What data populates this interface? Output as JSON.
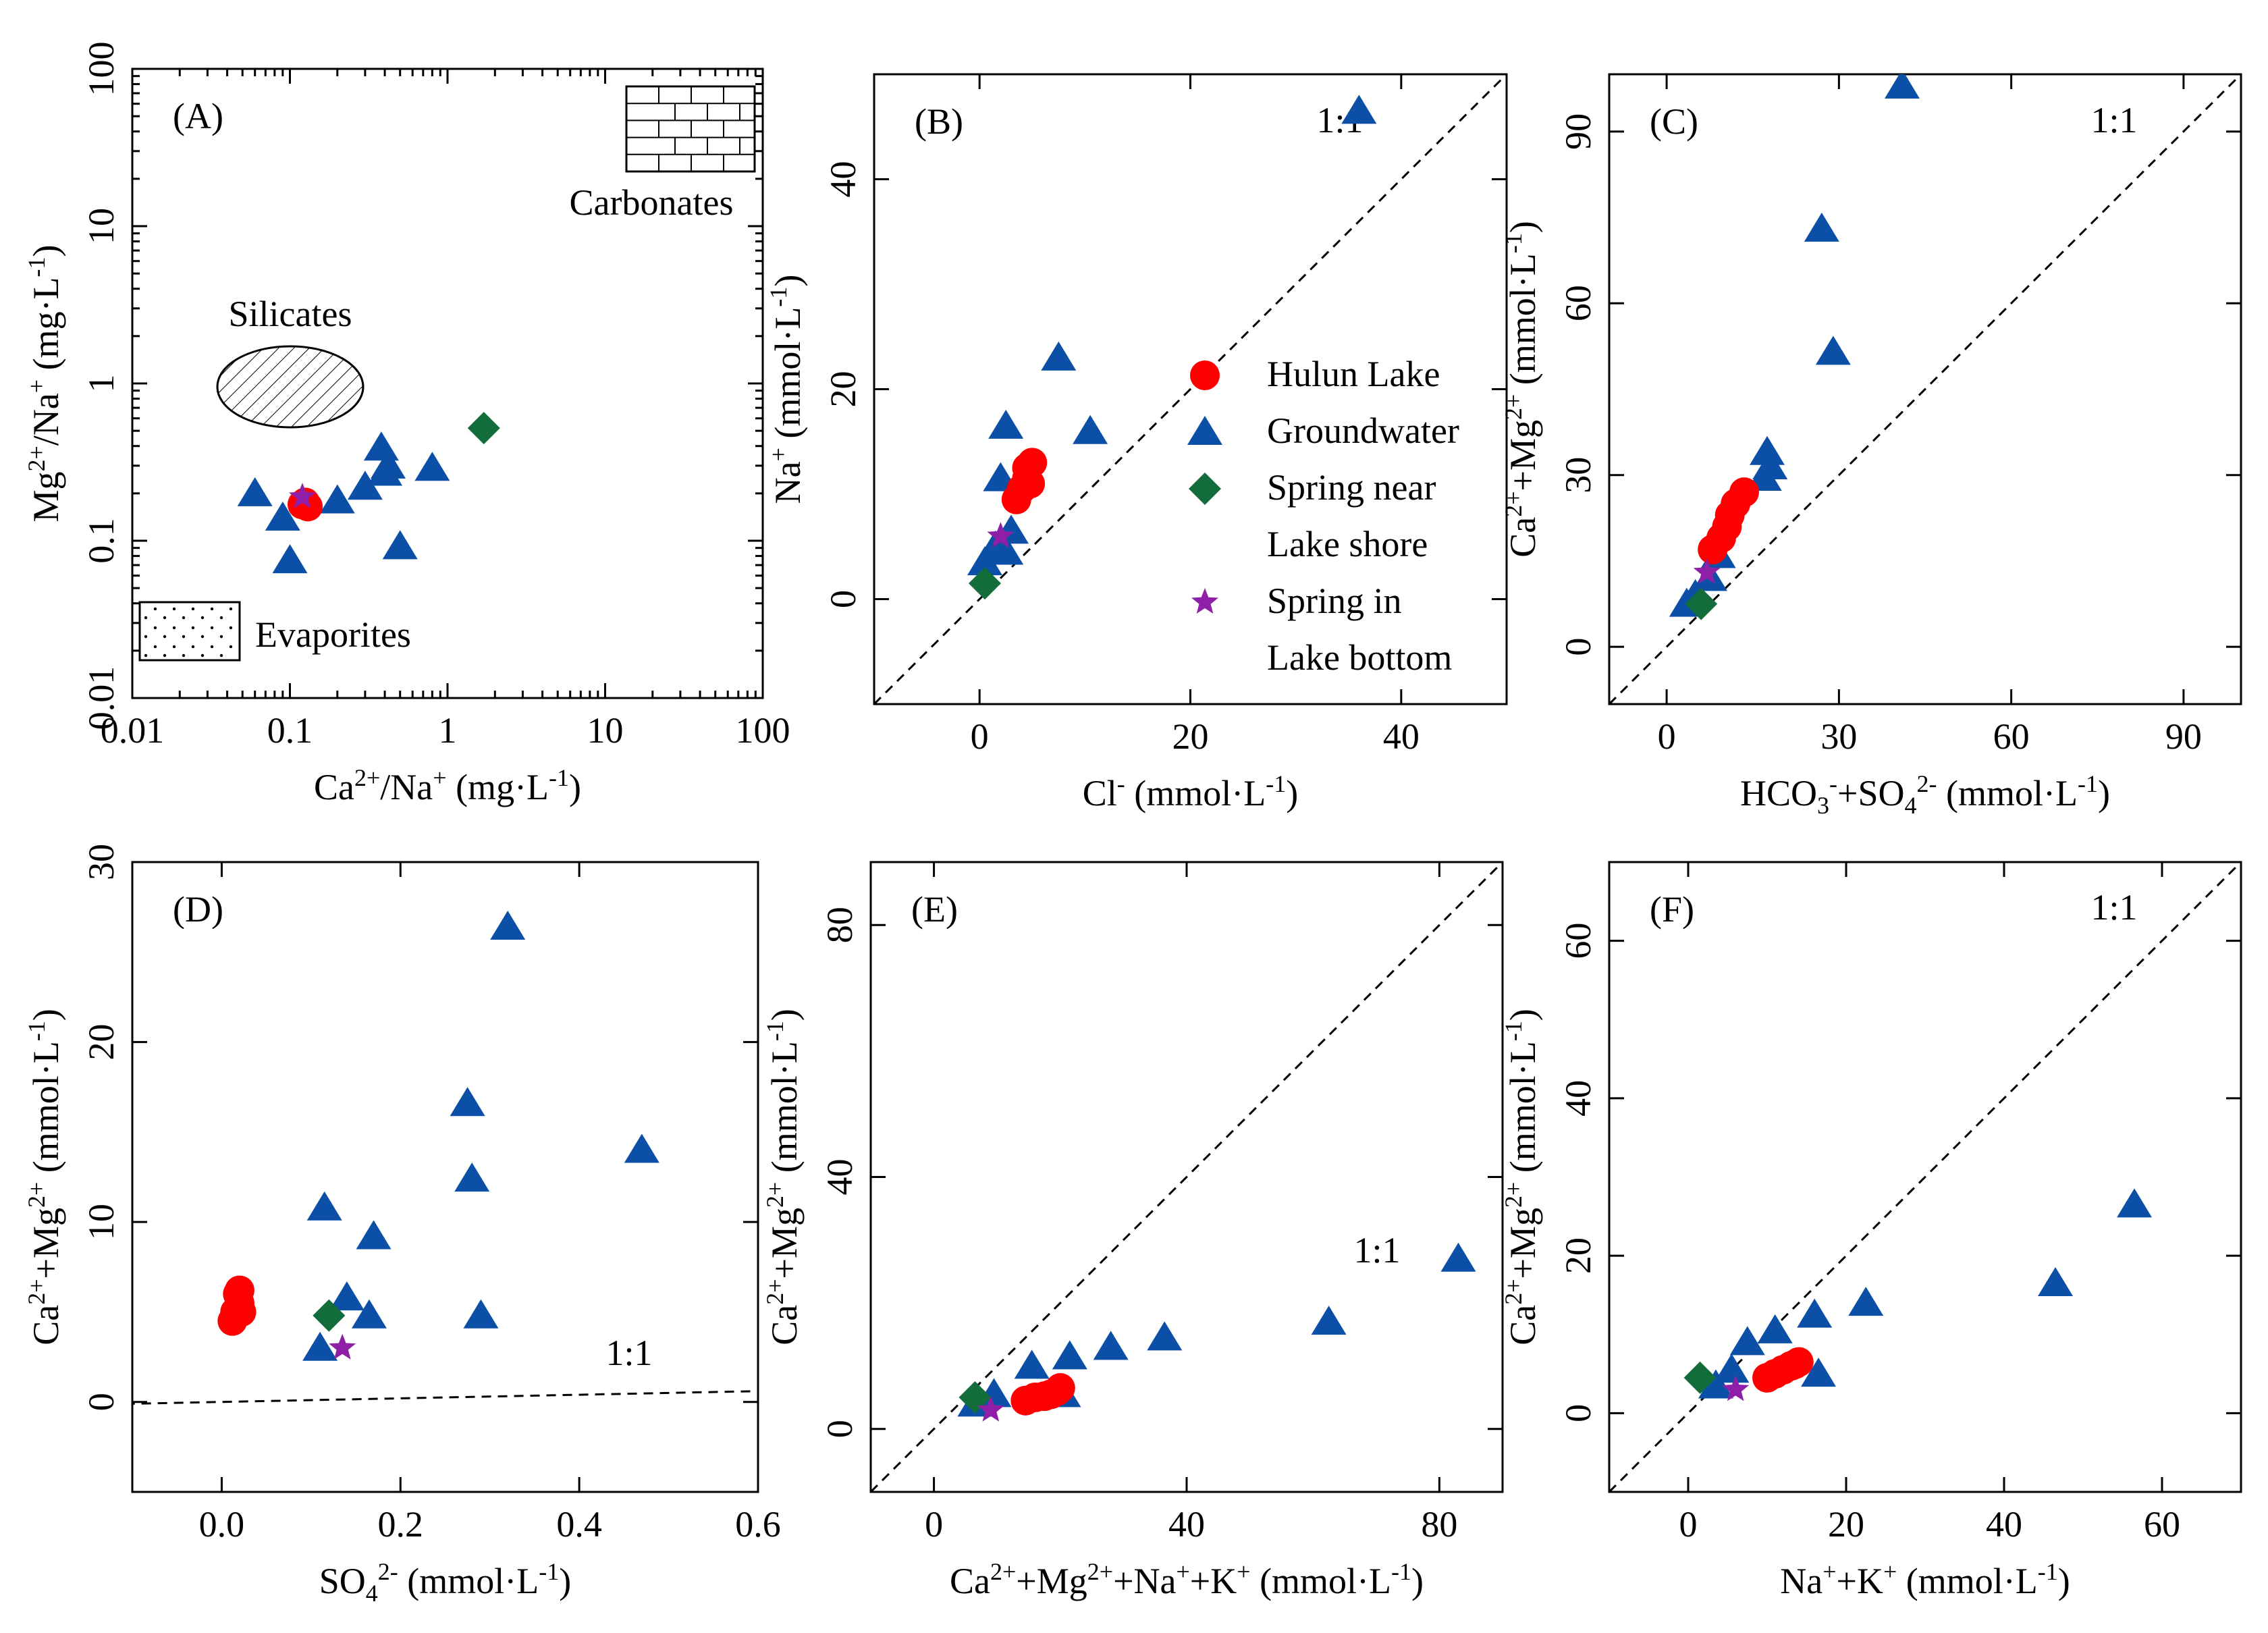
{
  "colors": {
    "hulun_lake": "#ff0000",
    "groundwater": "#0c4fa6",
    "spring_shore": "#136d3a",
    "spring_bottom": "#8f1fa6"
  },
  "legend": {
    "items": [
      {
        "key": "hulun",
        "marker": "circle",
        "lines": [
          "Hulun Lake"
        ]
      },
      {
        "key": "gw",
        "marker": "triangle",
        "lines": [
          "Groundwater"
        ]
      },
      {
        "key": "shore",
        "marker": "diamond",
        "lines": [
          "Spring near",
          "Lake shore"
        ]
      },
      {
        "key": "bottom",
        "marker": "star",
        "lines": [
          "Spring in",
          "Lake bottom"
        ]
      }
    ]
  },
  "chart_data": [
    {
      "panel": "(A)",
      "type": "scatter",
      "xscale": "log",
      "yscale": "log",
      "xlim": [
        0.01,
        100
      ],
      "ylim": [
        0.01,
        100
      ],
      "xticks": [
        "0.01",
        "0.1",
        "1",
        "10",
        "100"
      ],
      "yticks": [
        "0.01",
        "0.1",
        "1",
        "10",
        "100"
      ],
      "xlabel": [
        {
          "t": "Ca"
        },
        {
          "t": "2+",
          "s": "sup"
        },
        {
          "t": "/Na"
        },
        {
          "t": "+",
          "s": "sup"
        },
        {
          "t": " (mg·L"
        },
        {
          "t": "-1",
          "s": "sup"
        },
        {
          "t": ")"
        }
      ],
      "ylabel": [
        {
          "t": "Mg"
        },
        {
          "t": "2+",
          "s": "sup"
        },
        {
          "t": "/Na"
        },
        {
          "t": "+",
          "s": "sup"
        },
        {
          "t": " (mg·L"
        },
        {
          "t": "-1",
          "s": "sup"
        },
        {
          "t": ")"
        }
      ],
      "annotations": [
        "Carbonates",
        "Silicates",
        "Evaporites"
      ],
      "series": {
        "gw": {
          "x": [
            0.06,
            0.09,
            0.1,
            0.2,
            0.3,
            0.38,
            0.4,
            0.42,
            0.5,
            0.8
          ],
          "y": [
            0.2,
            0.14,
            0.075,
            0.18,
            0.22,
            0.39,
            0.27,
            0.3,
            0.092,
            0.29
          ]
        },
        "hulun": {
          "x": [
            0.12,
            0.125,
            0.13
          ],
          "y": [
            0.17,
            0.175,
            0.165
          ]
        },
        "shore": {
          "x": [
            1.7
          ],
          "y": [
            0.52
          ]
        },
        "bottom": {
          "x": [
            0.12
          ],
          "y": [
            0.19
          ]
        }
      }
    },
    {
      "panel": "(B)",
      "type": "scatter",
      "xlim": [
        -10,
        50
      ],
      "ylim": [
        -10,
        50
      ],
      "xticks": [
        "0",
        "20",
        "40"
      ],
      "yticks": [
        "0",
        "20",
        "40"
      ],
      "one_to_one": true,
      "one_to_one_label": "1:1",
      "xlabel": [
        {
          "t": "Cl"
        },
        {
          "t": "-",
          "s": "sup"
        },
        {
          "t": " (mmol·L"
        },
        {
          "t": "-1",
          "s": "sup"
        },
        {
          "t": ")"
        }
      ],
      "ylabel": [
        {
          "t": "Na"
        },
        {
          "t": "+",
          "s": "sup"
        },
        {
          "t": " (mmol·L"
        },
        {
          "t": "-1",
          "s": "sup"
        },
        {
          "t": ")"
        }
      ],
      "series": {
        "gw": {
          "x": [
            0.5,
            1.5,
            2.5,
            2.0,
            3.0,
            2.5,
            7.5,
            10.5,
            36.0
          ],
          "y": [
            3.5,
            5.0,
            4.5,
            11.5,
            6.5,
            16.5,
            23.0,
            16.0,
            46.5
          ]
        },
        "hulun": {
          "x": [
            3.5,
            4.0,
            4.5,
            4.5,
            5.0,
            4.8
          ],
          "y": [
            9.5,
            10.5,
            11.5,
            12.5,
            13.0,
            11.0
          ]
        },
        "shore": {
          "x": [
            0.5
          ],
          "y": [
            1.5
          ]
        },
        "bottom": {
          "x": [
            2.0
          ],
          "y": [
            6.0
          ]
        }
      }
    },
    {
      "panel": "(C)",
      "type": "scatter",
      "xlim": [
        -10,
        100
      ],
      "ylim": [
        -10,
        100
      ],
      "xticks": [
        "0",
        "30",
        "60",
        "90"
      ],
      "yticks": [
        "0",
        "30",
        "60",
        "90"
      ],
      "one_to_one": true,
      "one_to_one_label": "1:1",
      "xlabel": [
        {
          "t": "HCO"
        },
        {
          "t": "3",
          "s": "sub"
        },
        {
          "t": "-",
          "s": "sup"
        },
        {
          "t": "+SO"
        },
        {
          "t": "4",
          "s": "sub"
        },
        {
          "t": "2-",
          "s": "sup"
        },
        {
          "t": " (mmol·L"
        },
        {
          "t": "-1",
          "s": "sup"
        },
        {
          "t": ")"
        }
      ],
      "ylabel": [
        {
          "t": "Ca"
        },
        {
          "t": "2+",
          "s": "sup"
        },
        {
          "t": "+Mg"
        },
        {
          "t": "2+",
          "s": "sup"
        },
        {
          "t": " (mmol·L"
        },
        {
          "t": "-1",
          "s": "sup"
        },
        {
          "t": ")"
        }
      ],
      "series": {
        "gw": {
          "x": [
            3.5,
            5.0,
            7.5,
            9.0,
            17.0,
            18.0,
            17.5,
            27.0,
            29.0,
            41.0
          ],
          "y": [
            7.5,
            9.0,
            12.0,
            16.0,
            29.5,
            31.5,
            34.0,
            73.0,
            51.5,
            98.0
          ]
        },
        "hulun": {
          "x": [
            8.0,
            9.5,
            10.5,
            11.0,
            12.0,
            13.5
          ],
          "y": [
            17.0,
            19.0,
            21.0,
            23.0,
            25.0,
            27.0
          ]
        },
        "shore": {
          "x": [
            6.0
          ],
          "y": [
            7.5
          ]
        },
        "bottom": {
          "x": [
            7.0
          ],
          "y": [
            13.0
          ]
        }
      }
    },
    {
      "panel": "(D)",
      "type": "scatter",
      "xlim": [
        -0.1,
        0.6
      ],
      "ylim": [
        -5,
        30
      ],
      "xticks": [
        "0.0",
        "0.2",
        "0.4",
        "0.6"
      ],
      "yticks": [
        "0",
        "10",
        "20",
        "30"
      ],
      "one_to_one": true,
      "one_to_one_label": "1:1",
      "xlabel": [
        {
          "t": "SO"
        },
        {
          "t": "4",
          "s": "sub"
        },
        {
          "t": "2-",
          "s": "sup"
        },
        {
          "t": " (mmol·L"
        },
        {
          "t": "-1",
          "s": "sup"
        },
        {
          "t": ")"
        }
      ],
      "ylabel": [
        {
          "t": "Ca"
        },
        {
          "t": "2+",
          "s": "sup"
        },
        {
          "t": "+Mg"
        },
        {
          "t": "2+",
          "s": "sup"
        },
        {
          "t": " (mmol·L"
        },
        {
          "t": "-1",
          "s": "sup"
        },
        {
          "t": ")"
        }
      ],
      "series": {
        "gw": {
          "x": [
            0.11,
            0.115,
            0.14,
            0.165,
            0.17,
            0.275,
            0.28,
            0.29,
            0.32,
            0.47
          ],
          "y": [
            3.0,
            10.8,
            5.8,
            4.8,
            9.2,
            16.6,
            12.4,
            4.8,
            26.4,
            14.0
          ]
        },
        "hulun": {
          "x": [
            0.012,
            0.015,
            0.02,
            0.018,
            0.02,
            0.022
          ],
          "y": [
            4.5,
            5.0,
            5.5,
            6.0,
            6.2,
            5.0
          ]
        },
        "shore": {
          "x": [
            0.12
          ],
          "y": [
            4.8
          ]
        },
        "bottom": {
          "x": [
            0.135
          ],
          "y": [
            3.0
          ]
        }
      }
    },
    {
      "panel": "(E)",
      "type": "scatter",
      "xlim": [
        -10,
        90
      ],
      "ylim": [
        -10,
        90
      ],
      "xticks": [
        "0",
        "40",
        "80"
      ],
      "yticks": [
        "0",
        "40",
        "80"
      ],
      "one_to_one": true,
      "one_to_one_label": "1:1",
      "xlabel": [
        {
          "t": "Ca"
        },
        {
          "t": "2+",
          "s": "sup"
        },
        {
          "t": "+Mg"
        },
        {
          "t": "2+",
          "s": "sup"
        },
        {
          "t": "+Na"
        },
        {
          "t": "+",
          "s": "sup"
        },
        {
          "t": "+K"
        },
        {
          "t": "+",
          "s": "sup"
        },
        {
          "t": " (mmol·L"
        },
        {
          "t": "-1",
          "s": "sup"
        },
        {
          "t": ")"
        }
      ],
      "ylabel": [
        {
          "t": "Ca"
        },
        {
          "t": "2+",
          "s": "sup"
        },
        {
          "t": "+Mg"
        },
        {
          "t": "2+",
          "s": "sup"
        },
        {
          "t": " (mmol·L"
        },
        {
          "t": "-1",
          "s": "sup"
        },
        {
          "t": ")"
        }
      ],
      "series": {
        "gw": {
          "x": [
            6.5,
            9.5,
            15.5,
            20.5,
            21.5,
            28.0,
            36.5,
            62.5,
            83.0
          ],
          "y": [
            4.0,
            5.5,
            10.0,
            5.5,
            11.5,
            13.0,
            14.5,
            17.0,
            27.0
          ]
        },
        "hulun": {
          "x": [
            14.5,
            16.0,
            17.5,
            18.5,
            19.5,
            20.0
          ],
          "y": [
            4.5,
            5.0,
            5.2,
            5.5,
            6.0,
            6.5
          ]
        },
        "shore": {
          "x": [
            6.5
          ],
          "y": [
            5.0
          ]
        },
        "bottom": {
          "x": [
            9.0
          ],
          "y": [
            3.0
          ]
        }
      }
    },
    {
      "panel": "(F)",
      "type": "scatter",
      "xlim": [
        -10,
        70
      ],
      "ylim": [
        -10,
        70
      ],
      "xticks": [
        "0",
        "20",
        "40",
        "60"
      ],
      "yticks": [
        "0",
        "20",
        "40",
        "60"
      ],
      "one_to_one": true,
      "one_to_one_label": "1:1",
      "xlabel": [
        {
          "t": "Na"
        },
        {
          "t": "+",
          "s": "sup"
        },
        {
          "t": "+K"
        },
        {
          "t": "+",
          "s": "sup"
        },
        {
          "t": " (mmol·L"
        },
        {
          "t": "-1",
          "s": "sup"
        },
        {
          "t": ")"
        }
      ],
      "ylabel": [
        {
          "t": "Ca"
        },
        {
          "t": "2+",
          "s": "sup"
        },
        {
          "t": "+Mg"
        },
        {
          "t": "2+",
          "s": "sup"
        },
        {
          "t": " (mmol·L"
        },
        {
          "t": "-1",
          "s": "sup"
        },
        {
          "t": ")"
        }
      ],
      "series": {
        "gw": {
          "x": [
            3.5,
            5.5,
            7.5,
            11.0,
            16.0,
            16.5,
            22.5,
            46.5,
            56.5
          ],
          "y": [
            3.5,
            5.5,
            9.0,
            10.5,
            12.5,
            5.0,
            14.0,
            16.5,
            26.5
          ]
        },
        "hulun": {
          "x": [
            10.0,
            11.0,
            12.0,
            13.0,
            13.5,
            14.0
          ],
          "y": [
            4.5,
            5.0,
            5.5,
            6.0,
            6.2,
            6.5
          ]
        },
        "shore": {
          "x": [
            1.5
          ],
          "y": [
            4.5
          ]
        },
        "bottom": {
          "x": [
            6.0
          ],
          "y": [
            3.0
          ]
        }
      }
    }
  ]
}
